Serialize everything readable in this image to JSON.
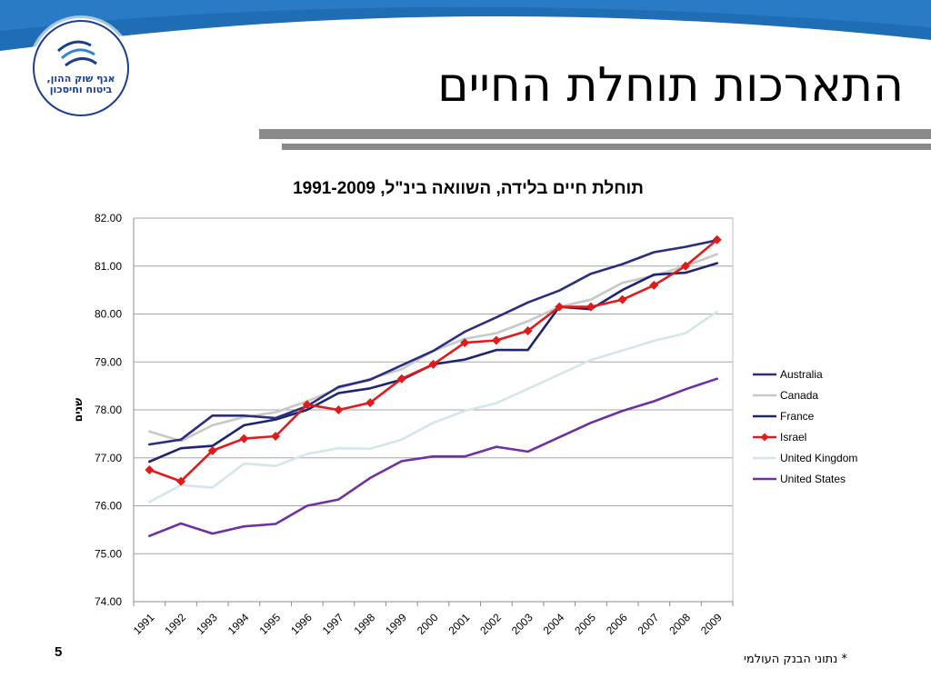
{
  "header": {
    "title": "התארכות תוחלת החיים",
    "logo_line1": "אגף שוק ההון,",
    "logo_line2": "ביטוח וחיסכון"
  },
  "colors": {
    "header_arc": "#1f6db5",
    "title_bars": "#8a8a8a",
    "grid": "#a6a6a6"
  },
  "footer": {
    "slide_number": "5",
    "footnote": "* נתוני הבנק העולמי"
  },
  "chart_data": {
    "type": "line",
    "title": "תוחלת חיים בלידה, השוואה בינ\"ל, 1991-2009",
    "xlabel": "",
    "ylabel": "שנים",
    "ylim": [
      74,
      82
    ],
    "ytick_step": 1,
    "ytick_labels": [
      "74.00",
      "75.00",
      "76.00",
      "77.00",
      "78.00",
      "79.00",
      "80.00",
      "81.00",
      "82.00"
    ],
    "grid": true,
    "legend_position": "right",
    "categories": [
      "1991",
      "1992",
      "1993",
      "1994",
      "1995",
      "1996",
      "1997",
      "1998",
      "1999",
      "2000",
      "2001",
      "2002",
      "2003",
      "2004",
      "2005",
      "2006",
      "2007",
      "2008",
      "2009"
    ],
    "series": [
      {
        "name": "Australia",
        "color": "#2b2e7f",
        "marker": "none",
        "values": [
          77.28,
          77.38,
          77.88,
          77.88,
          77.83,
          78.08,
          78.48,
          78.63,
          78.93,
          79.23,
          79.63,
          79.93,
          80.24,
          80.49,
          80.84,
          81.04,
          81.29,
          81.4,
          81.54
        ]
      },
      {
        "name": "Canada",
        "color": "#c8c8c8",
        "marker": "none",
        "values": [
          77.55,
          77.35,
          77.68,
          77.85,
          77.95,
          78.18,
          78.45,
          78.65,
          78.85,
          79.23,
          79.48,
          79.6,
          79.85,
          80.15,
          80.3,
          80.65,
          80.8,
          81.0,
          81.25
        ]
      },
      {
        "name": "France",
        "color": "#1f2470",
        "marker": "none",
        "values": [
          76.92,
          77.2,
          77.25,
          77.68,
          77.8,
          78.0,
          78.35,
          78.45,
          78.63,
          78.95,
          79.05,
          79.25,
          79.25,
          80.15,
          80.1,
          80.5,
          80.82,
          80.86,
          81.06
        ]
      },
      {
        "name": "Israel",
        "color": "#e11b1b",
        "marker": "diamond",
        "values": [
          76.75,
          76.51,
          77.15,
          77.4,
          77.45,
          78.11,
          78.0,
          78.15,
          78.65,
          78.95,
          79.4,
          79.45,
          79.65,
          80.15,
          80.15,
          80.3,
          80.6,
          81.0,
          81.55
        ]
      },
      {
        "name": "United Kingdom",
        "color": "#d3e6ea",
        "marker": "none",
        "values": [
          76.08,
          76.43,
          76.38,
          76.88,
          76.83,
          77.08,
          77.2,
          77.19,
          77.38,
          77.73,
          77.98,
          78.14,
          78.44,
          78.74,
          79.04,
          79.24,
          79.44,
          79.6,
          80.05
        ]
      },
      {
        "name": "United States",
        "color": "#7030a0",
        "marker": "none",
        "values": [
          75.37,
          75.63,
          75.42,
          75.57,
          75.62,
          76.0,
          76.13,
          76.58,
          76.93,
          77.03,
          77.03,
          77.23,
          77.13,
          77.43,
          77.73,
          77.98,
          78.18,
          78.43,
          78.65
        ]
      }
    ]
  }
}
